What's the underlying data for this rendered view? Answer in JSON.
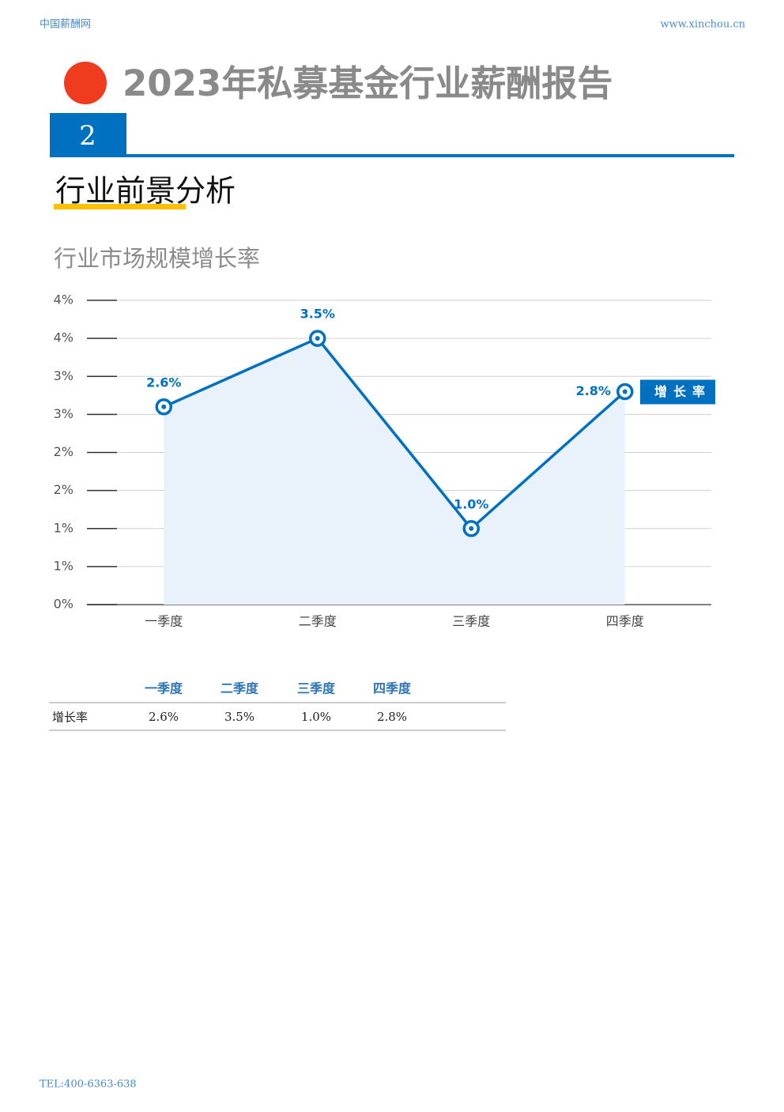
{
  "header": {
    "site": "中国薪酬网",
    "url": "www.xinchou.cn",
    "title": "2023年私募基金行业薪酬报告",
    "section_number": "2",
    "section_title": "行业前景分析"
  },
  "chart_data": {
    "type": "line",
    "title": "行业市场规模增长率",
    "categories": [
      "一季度",
      "二季度",
      "三季度",
      "四季度"
    ],
    "series": [
      {
        "name": "增长率",
        "color": "#0070c0",
        "values": [
          2.6,
          3.5,
          1.0,
          2.8
        ],
        "value_labels": [
          "2.6%",
          "3.5%",
          "1.0%",
          "2.8%"
        ]
      }
    ],
    "ylim": [
      0,
      4
    ],
    "yticks": [
      {
        "value": 0,
        "label": "0%"
      },
      {
        "value": 0.5,
        "label": "1%"
      },
      {
        "value": 1,
        "label": "1%"
      },
      {
        "value": 1.5,
        "label": "2%"
      },
      {
        "value": 2,
        "label": "2%"
      },
      {
        "value": 2.5,
        "label": "3%"
      },
      {
        "value": 3,
        "label": "3%"
      },
      {
        "value": 3.5,
        "label": "4%"
      },
      {
        "value": 4,
        "label": "4%"
      }
    ],
    "grid": true,
    "legend": "right"
  },
  "table": {
    "columns": [
      "一季度",
      "二季度",
      "三季度",
      "四季度"
    ],
    "rows": [
      [
        "增长率",
        "2.6%",
        "3.5%",
        "1.0%",
        "2.8%"
      ]
    ]
  },
  "footer": {
    "tel": "TEL:400-6363-638"
  }
}
